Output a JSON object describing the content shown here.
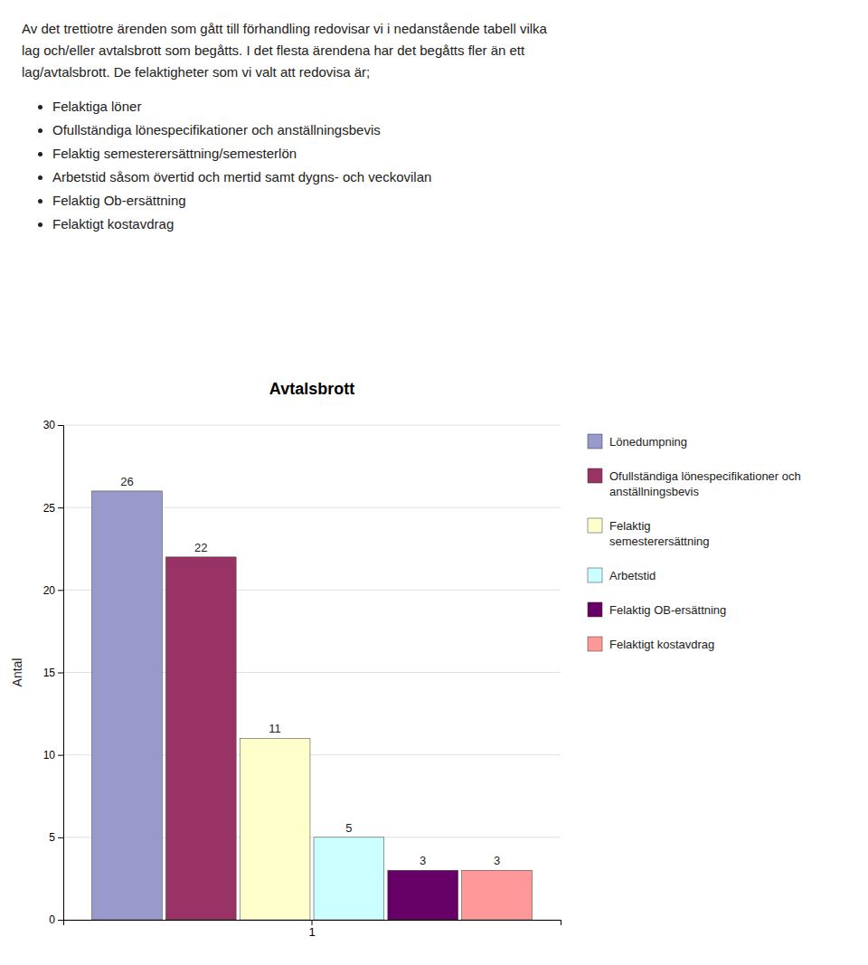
{
  "page_text": {
    "paragraph": [
      "Av det trettiotre ärenden som gått till förhandling redovisar vi i nedanstående tabell vilka",
      "lag och/eller avtalsbrott som begåtts. I det flesta ärendena har det begåtts fler än ett",
      "lag/avtalsbrott. De felaktigheter som vi valt att redovisa är;"
    ],
    "bullets": [
      "Felaktiga löner",
      "Ofullständiga lönespecifikationer och anställningsbevis",
      "Felaktig semesterersättning/semesterlön",
      "Arbetstid såsom övertid och mertid samt dygns- och veckovilan",
      "Felaktig Ob-ersättning",
      "Felaktigt kostavdrag"
    ]
  },
  "chart_data": {
    "type": "bar",
    "title": "Avtalsbrott",
    "ylabel": "Antal",
    "categories": [
      "1"
    ],
    "series": [
      {
        "name": "Lönedumpning",
        "color": "#9999cc",
        "values": [
          26
        ]
      },
      {
        "name": "Ofullständiga lönespecifikationer och\nanställningsbevis",
        "color": "#993366",
        "values": [
          22
        ]
      },
      {
        "name": "Felaktig\nsemesterersättning",
        "color": "#ffffcc",
        "values": [
          11
        ]
      },
      {
        "name": "Arbetstid",
        "color": "#ccffff",
        "values": [
          5
        ]
      },
      {
        "name": "Felaktig OB-ersättning",
        "color": "#660066",
        "values": [
          3
        ]
      },
      {
        "name": "Felaktigt kostavdrag",
        "color": "#ff9999",
        "values": [
          3
        ]
      }
    ],
    "ylim": [
      0,
      30
    ],
    "yticks": [
      0,
      5,
      10,
      15,
      20,
      25,
      30
    ],
    "grid": true,
    "legend": "right",
    "data_labels": true
  }
}
